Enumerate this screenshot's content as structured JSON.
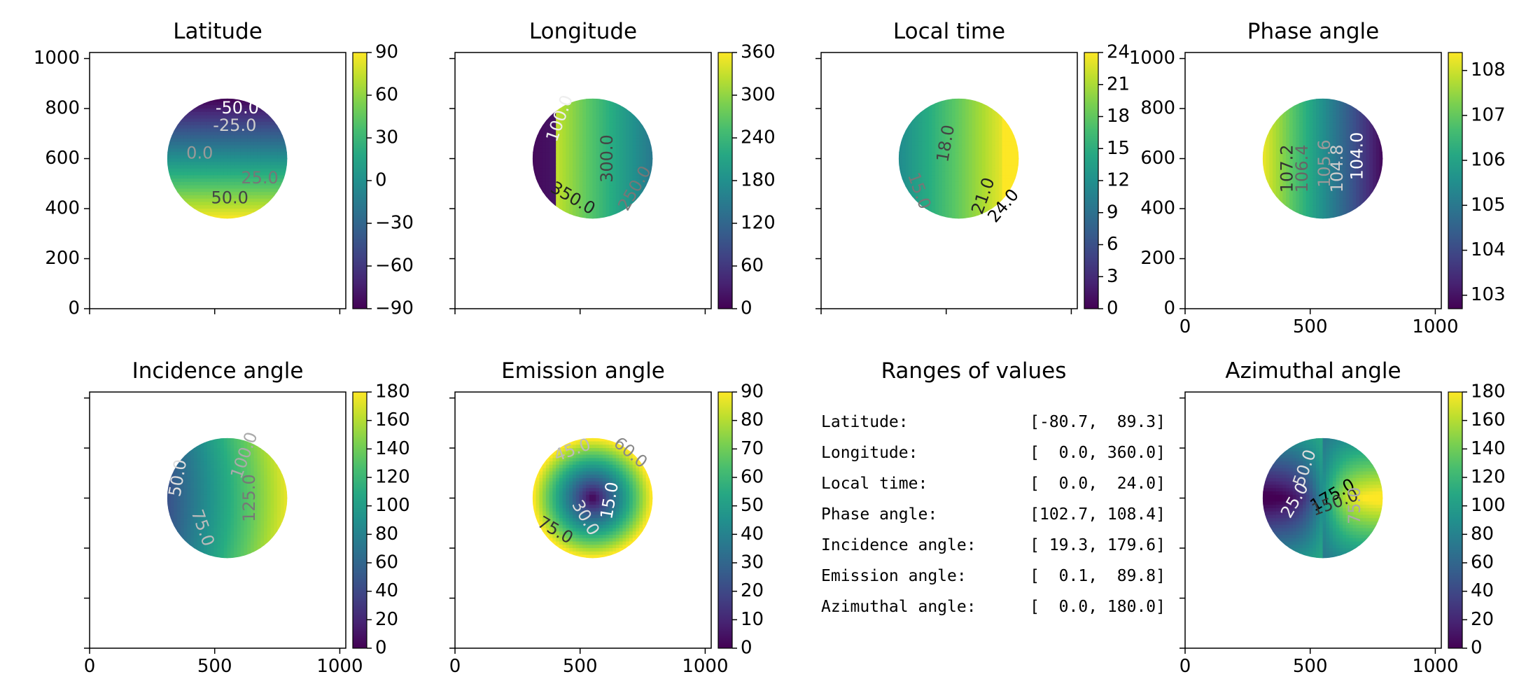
{
  "chart_data": [
    {
      "type": "heatmap",
      "title": "Latitude",
      "xlim": [
        0,
        1024
      ],
      "ylim": [
        0,
        1024
      ],
      "xticks": [
        0,
        500,
        1000
      ],
      "yticks": [
        0,
        200,
        400,
        600,
        800,
        1000
      ],
      "show_xticklabels": false,
      "show_yticklabels": true,
      "disk": {
        "center_x": 550,
        "center_y": 600,
        "radius": 240
      },
      "field": "latitude",
      "colorbar": {
        "min": -90,
        "max": 90,
        "ticks": [
          90,
          60,
          30,
          0,
          -30,
          -60,
          -90
        ],
        "tick_labels": [
          "90",
          "60",
          "30",
          "0",
          "−30",
          "−60",
          "−90"
        ]
      },
      "contour_labels": [
        {
          "text": "-50.0",
          "x": 590,
          "y": 800,
          "color": "#ffffff",
          "rotate": 0
        },
        {
          "text": "-25.0",
          "x": 580,
          "y": 730,
          "color": "#cccccc",
          "rotate": 0
        },
        {
          "text": "0.0",
          "x": 440,
          "y": 620,
          "color": "#999999",
          "rotate": 0
        },
        {
          "text": "25.0",
          "x": 680,
          "y": 520,
          "color": "#777777",
          "rotate": 0
        },
        {
          "text": "50.0",
          "x": 560,
          "y": 440,
          "color": "#444444",
          "rotate": 0
        }
      ]
    },
    {
      "type": "heatmap",
      "title": "Longitude",
      "xlim": [
        0,
        1024
      ],
      "ylim": [
        0,
        1024
      ],
      "xticks": [
        0,
        500,
        1000
      ],
      "yticks": [
        0,
        200,
        400,
        600,
        800,
        1000
      ],
      "show_xticklabels": false,
      "show_yticklabels": false,
      "disk": {
        "center_x": 550,
        "center_y": 600,
        "radius": 240
      },
      "field": "longitude",
      "colorbar": {
        "min": 0,
        "max": 360,
        "ticks": [
          360,
          300,
          240,
          180,
          120,
          60,
          0
        ],
        "tick_labels": [
          "360",
          "300",
          "240",
          "180",
          "120",
          "60",
          "0"
        ]
      },
      "contour_labels": [
        {
          "text": "100.0",
          "x": 420,
          "y": 760,
          "color": "#eeeeee",
          "rotate": -70
        },
        {
          "text": "300.0",
          "x": 610,
          "y": 600,
          "color": "#444444",
          "rotate": -90
        },
        {
          "text": "250.0",
          "x": 720,
          "y": 480,
          "color": "#777777",
          "rotate": -60
        },
        {
          "text": "350.0",
          "x": 470,
          "y": 440,
          "color": "#222222",
          "rotate": 30
        }
      ]
    },
    {
      "type": "heatmap",
      "title": "Local time",
      "xlim": [
        0,
        1024
      ],
      "ylim": [
        0,
        1024
      ],
      "xticks": [
        0,
        500,
        1000
      ],
      "yticks": [
        0,
        200,
        400,
        600,
        800,
        1000
      ],
      "show_xticklabels": false,
      "show_yticklabels": false,
      "disk": {
        "center_x": 550,
        "center_y": 600,
        "radius": 240
      },
      "field": "localtime",
      "colorbar": {
        "min": 0,
        "max": 24,
        "ticks": [
          24,
          21,
          18,
          15,
          12,
          9,
          6,
          3,
          0
        ],
        "tick_labels": [
          "24",
          "21",
          "18",
          "15",
          "12",
          "9",
          "6",
          "3",
          "0"
        ]
      },
      "contour_labels": [
        {
          "text": "18.0",
          "x": 500,
          "y": 660,
          "color": "#444444",
          "rotate": -80
        },
        {
          "text": "15.0",
          "x": 390,
          "y": 470,
          "color": "#777777",
          "rotate": 70
        },
        {
          "text": "21.0",
          "x": 650,
          "y": 450,
          "color": "#222222",
          "rotate": -70
        },
        {
          "text": "24.0",
          "x": 730,
          "y": 410,
          "color": "#000000",
          "rotate": -50
        }
      ]
    },
    {
      "type": "heatmap",
      "title": "Phase angle",
      "xlim": [
        0,
        1024
      ],
      "ylim": [
        0,
        1024
      ],
      "xticks": [
        0,
        500,
        1000
      ],
      "yticks": [
        0,
        200,
        400,
        600,
        800,
        1000
      ],
      "show_xticklabels": true,
      "show_yticklabels": true,
      "disk": {
        "center_x": 550,
        "center_y": 600,
        "radius": 240
      },
      "field": "phase",
      "colorbar": {
        "min": 102.7,
        "max": 108.4,
        "ticks": [
          108,
          107,
          106,
          105,
          104,
          103
        ],
        "tick_labels": [
          "108",
          "107",
          "106",
          "105",
          "104",
          "103"
        ]
      },
      "contour_labels": [
        {
          "text": "107.2",
          "x": 410,
          "y": 560,
          "color": "#333333",
          "rotate": -90
        },
        {
          "text": "106.4",
          "x": 470,
          "y": 560,
          "color": "#666666",
          "rotate": -90
        },
        {
          "text": "105.6",
          "x": 560,
          "y": 580,
          "color": "#999999",
          "rotate": -90
        },
        {
          "text": "104.8",
          "x": 610,
          "y": 560,
          "color": "#cccccc",
          "rotate": -90
        },
        {
          "text": "104.0",
          "x": 690,
          "y": 610,
          "color": "#ffffff",
          "rotate": -90
        }
      ]
    },
    {
      "type": "heatmap",
      "title": "Incidence angle",
      "xlim": [
        0,
        1024
      ],
      "ylim": [
        0,
        1024
      ],
      "xticks": [
        0,
        500,
        1000
      ],
      "yticks": [
        0,
        200,
        400,
        600,
        800,
        1000
      ],
      "show_xticklabels": true,
      "show_yticklabels": false,
      "disk": {
        "center_x": 550,
        "center_y": 600,
        "radius": 240
      },
      "field": "incidence",
      "colorbar": {
        "min": 0,
        "max": 180,
        "ticks": [
          180,
          160,
          140,
          120,
          100,
          80,
          60,
          40,
          20,
          0
        ],
        "tick_labels": [
          "180",
          "160",
          "140",
          "120",
          "100",
          "80",
          "60",
          "40",
          "20",
          "0"
        ]
      },
      "contour_labels": [
        {
          "text": "100.0",
          "x": 620,
          "y": 770,
          "color": "#aaaaaa",
          "rotate": -70
        },
        {
          "text": "50.0",
          "x": 355,
          "y": 680,
          "color": "#dddddd",
          "rotate": -80
        },
        {
          "text": "125.0",
          "x": 640,
          "y": 600,
          "color": "#777777",
          "rotate": -90
        },
        {
          "text": "75.0",
          "x": 450,
          "y": 480,
          "color": "#bbbbbb",
          "rotate": 70
        }
      ]
    },
    {
      "type": "heatmap",
      "title": "Emission angle",
      "xlim": [
        0,
        1024
      ],
      "ylim": [
        0,
        1024
      ],
      "xticks": [
        0,
        500,
        1000
      ],
      "yticks": [
        0,
        200,
        400,
        600,
        800,
        1000
      ],
      "show_xticklabels": true,
      "show_yticklabels": false,
      "disk": {
        "center_x": 550,
        "center_y": 600,
        "radius": 240
      },
      "field": "emission",
      "colorbar": {
        "min": 0,
        "max": 90,
        "ticks": [
          90,
          80,
          70,
          60,
          50,
          40,
          30,
          20,
          10,
          0
        ],
        "tick_labels": [
          "90",
          "80",
          "70",
          "60",
          "50",
          "40",
          "30",
          "20",
          "10",
          "0"
        ]
      },
      "contour_labels": [
        {
          "text": "45.0",
          "x": 470,
          "y": 790,
          "color": "#bbbbbb",
          "rotate": -20
        },
        {
          "text": "60.0",
          "x": 700,
          "y": 780,
          "color": "#888888",
          "rotate": 40
        },
        {
          "text": "15.0",
          "x": 620,
          "y": 590,
          "color": "#ffffff",
          "rotate": -80
        },
        {
          "text": "30.0",
          "x": 520,
          "y": 520,
          "color": "#dddddd",
          "rotate": 60
        },
        {
          "text": "75.0",
          "x": 400,
          "y": 470,
          "color": "#333333",
          "rotate": 30
        }
      ]
    },
    {
      "type": "table",
      "title": "Ranges of values",
      "rows": [
        {
          "label": "Latitude:",
          "range": "[-80.7,  89.3]"
        },
        {
          "label": "Longitude:",
          "range": "[  0.0, 360.0]"
        },
        {
          "label": "Local time:",
          "range": "[  0.0,  24.0]"
        },
        {
          "label": "Phase angle:",
          "range": "[102.7, 108.4]"
        },
        {
          "label": "Incidence angle:",
          "range": "[ 19.3, 179.6]"
        },
        {
          "label": "Emission angle:",
          "range": "[  0.1,  89.8]"
        },
        {
          "label": "Azimuthal angle:",
          "range": "[  0.0, 180.0]"
        }
      ]
    },
    {
      "type": "heatmap",
      "title": "Azimuthal angle",
      "xlim": [
        0,
        1024
      ],
      "ylim": [
        0,
        1024
      ],
      "xticks": [
        0,
        500,
        1000
      ],
      "yticks": [
        0,
        200,
        400,
        600,
        800,
        1000
      ],
      "show_xticklabels": true,
      "show_yticklabels": false,
      "disk": {
        "center_x": 550,
        "center_y": 600,
        "radius": 240
      },
      "field": "azimuth",
      "colorbar": {
        "min": 0,
        "max": 180,
        "ticks": [
          180,
          160,
          140,
          120,
          100,
          80,
          60,
          40,
          20,
          0
        ],
        "tick_labels": [
          "180",
          "160",
          "140",
          "120",
          "100",
          "80",
          "60",
          "40",
          "20",
          "0"
        ]
      },
      "contour_labels": [
        {
          "text": "50.0",
          "x": 480,
          "y": 720,
          "color": "#dddddd",
          "rotate": -70
        },
        {
          "text": "25.0",
          "x": 440,
          "y": 590,
          "color": "#eeeeee",
          "rotate": -60
        },
        {
          "text": "175.0",
          "x": 590,
          "y": 610,
          "color": "#000000",
          "rotate": -30
        },
        {
          "text": "150.0",
          "x": 600,
          "y": 580,
          "color": "#333333",
          "rotate": -20
        },
        {
          "text": "75.0",
          "x": 680,
          "y": 570,
          "color": "#aaaaaa",
          "rotate": -90
        }
      ]
    }
  ]
}
